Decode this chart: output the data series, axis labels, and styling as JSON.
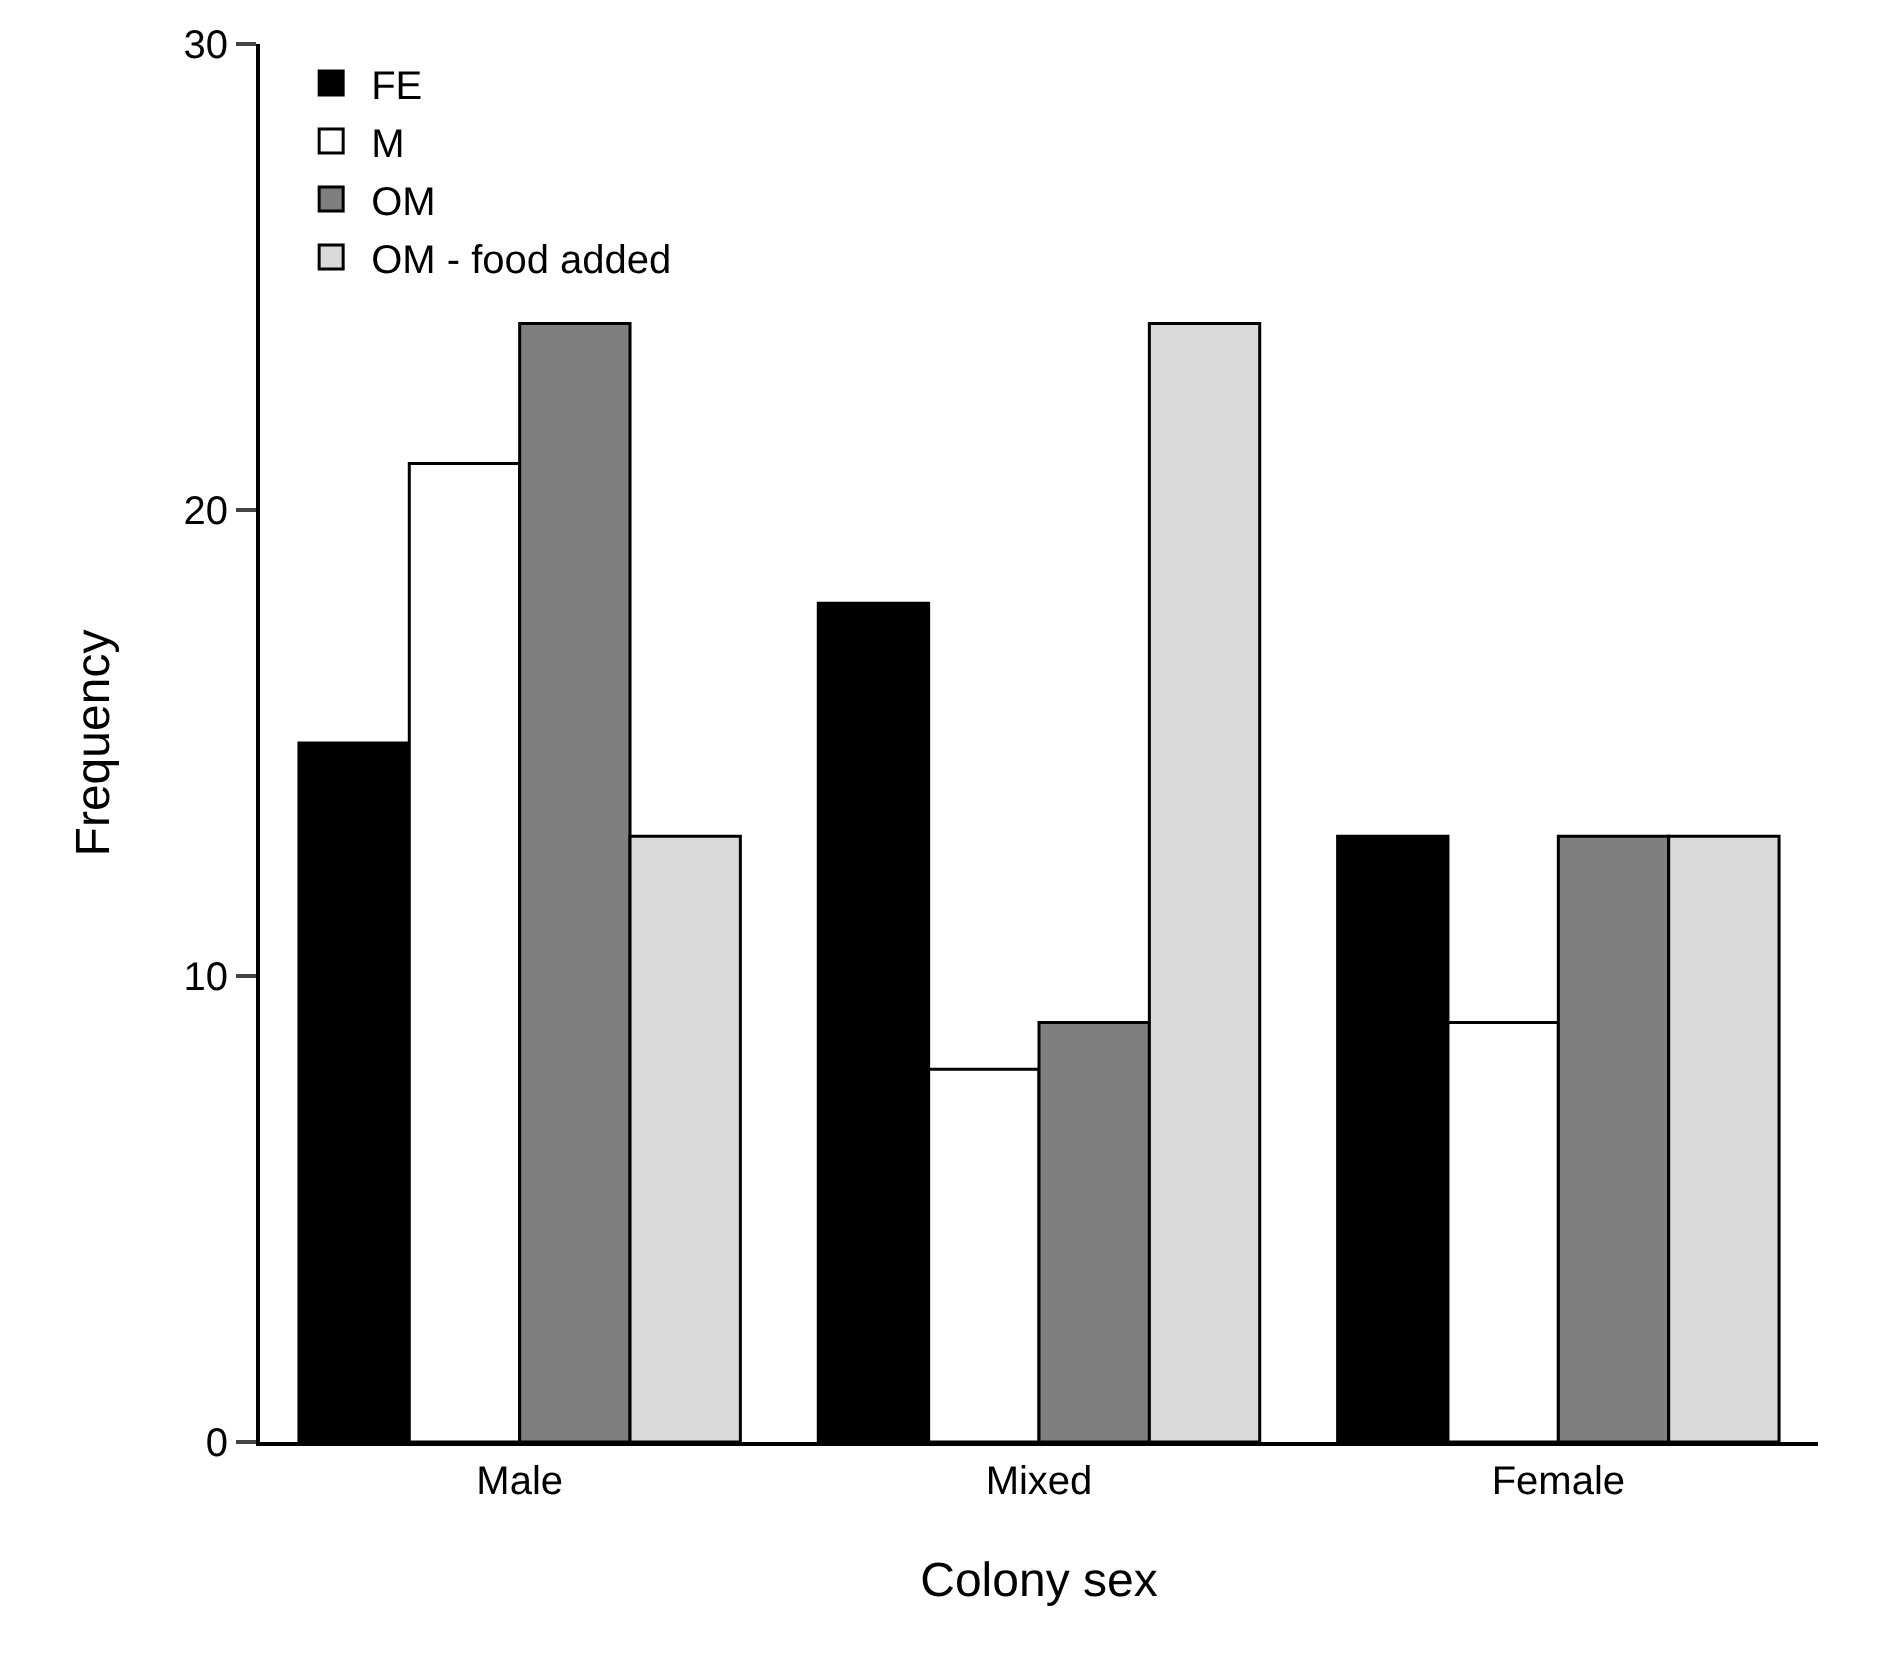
{
  "chart_data": {
    "type": "bar",
    "xlabel": "Colony sex",
    "ylabel": "Frequency",
    "categories": [
      "Male",
      "Mixed",
      "Female"
    ],
    "series": [
      {
        "name": "FE",
        "color": "#000000",
        "values": [
          15,
          18,
          13
        ]
      },
      {
        "name": "M",
        "color": "#ffffff",
        "values": [
          21,
          8,
          9
        ]
      },
      {
        "name": "OM",
        "color": "#7f7f7f",
        "values": [
          24,
          9,
          13
        ]
      },
      {
        "name": "OM - food added",
        "color": "#d9d9d9",
        "values": [
          13,
          24,
          13
        ]
      }
    ],
    "ylim": [
      0,
      30
    ],
    "yticks": [
      0,
      10,
      20,
      30
    ],
    "legend": "top left"
  }
}
